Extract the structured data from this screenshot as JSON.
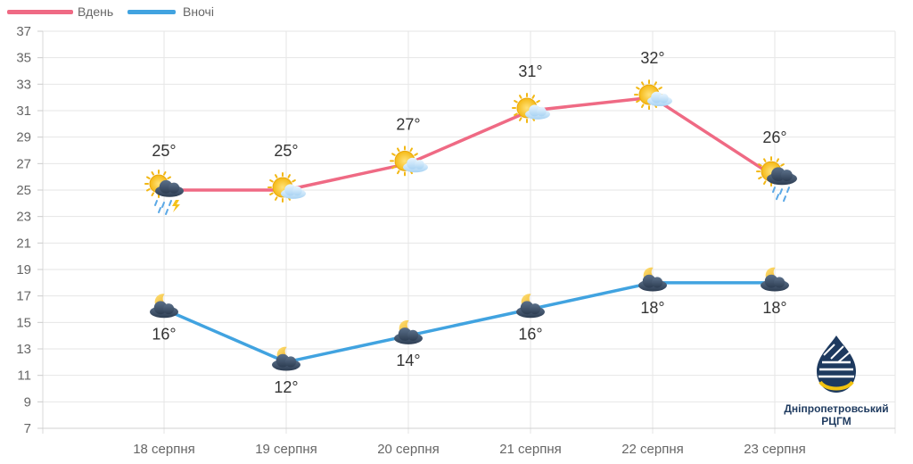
{
  "chart_data": {
    "type": "line",
    "categories": [
      "18 серпня",
      "19 серпня",
      "20 серпня",
      "21 серпня",
      "22 серпня",
      "23 серпня"
    ],
    "series": [
      {
        "name": "Вдень",
        "color": "#ef6a84",
        "values": [
          25,
          25,
          27,
          31,
          32,
          26
        ],
        "labels": [
          "25°",
          "25°",
          "27°",
          "31°",
          "32°",
          "26°"
        ],
        "icons": [
          "sun-storm-rain-icon",
          "sun-cloud-icon",
          "sun-cloud-icon",
          "sun-cloud-icon",
          "sun-cloud-icon",
          "sun-rain-icon"
        ]
      },
      {
        "name": "Вночі",
        "color": "#41a3e0",
        "values": [
          16,
          12,
          14,
          16,
          18,
          18
        ],
        "labels": [
          "16°",
          "12°",
          "14°",
          "16°",
          "18°",
          "18°"
        ],
        "icons": [
          "moon-cloud-icon",
          "moon-cloud-icon",
          "moon-cloud-icon",
          "moon-cloud-icon",
          "moon-cloud-icon",
          "moon-cloud-icon"
        ]
      }
    ],
    "yticks": [
      7,
      9,
      11,
      13,
      15,
      17,
      19,
      21,
      23,
      25,
      27,
      29,
      31,
      33,
      35,
      37
    ],
    "ylim": [
      7,
      37
    ],
    "grid": true,
    "legend": "top-left"
  },
  "logo": {
    "line1": "Дніпропетровський",
    "line2": "РЦГМ",
    "icon": "drop-logo-icon"
  }
}
